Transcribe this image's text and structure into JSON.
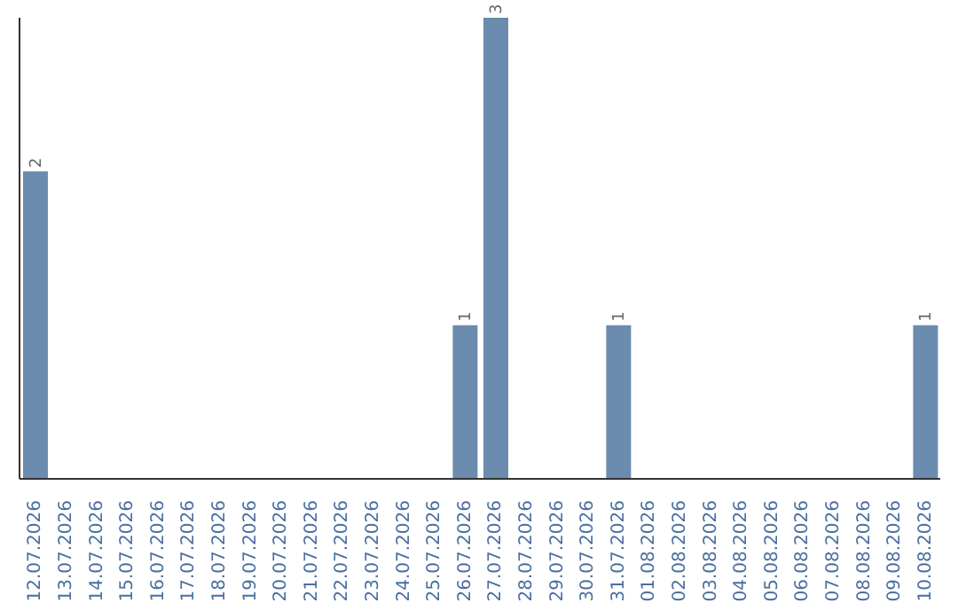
{
  "chart_data": {
    "type": "bar",
    "categories": [
      "12.07.2026",
      "13.07.2026",
      "14.07.2026",
      "15.07.2026",
      "16.07.2026",
      "17.07.2026",
      "18.07.2026",
      "19.07.2026",
      "20.07.2026",
      "21.07.2026",
      "22.07.2026",
      "23.07.2026",
      "24.07.2026",
      "25.07.2026",
      "26.07.2026",
      "27.07.2026",
      "28.07.2026",
      "29.07.2026",
      "30.07.2026",
      "31.07.2026",
      "01.08.2026",
      "02.08.2026",
      "03.08.2026",
      "04.08.2026",
      "05.08.2026",
      "06.08.2026",
      "07.08.2026",
      "08.08.2026",
      "09.08.2026",
      "10.08.2026"
    ],
    "values": [
      2,
      0,
      0,
      0,
      0,
      0,
      0,
      0,
      0,
      0,
      0,
      0,
      0,
      0,
      1,
      3,
      0,
      0,
      0,
      1,
      0,
      0,
      0,
      0,
      0,
      0,
      0,
      0,
      0,
      1
    ],
    "value_labels": [
      "2",
      null,
      null,
      null,
      null,
      null,
      null,
      null,
      null,
      null,
      null,
      null,
      null,
      null,
      "1",
      "3",
      null,
      null,
      null,
      "1",
      null,
      null,
      null,
      null,
      null,
      null,
      null,
      null,
      null,
      "1"
    ],
    "color": "#6b8cae",
    "tick_labels": "x",
    "grid": false,
    "legend": false
  }
}
